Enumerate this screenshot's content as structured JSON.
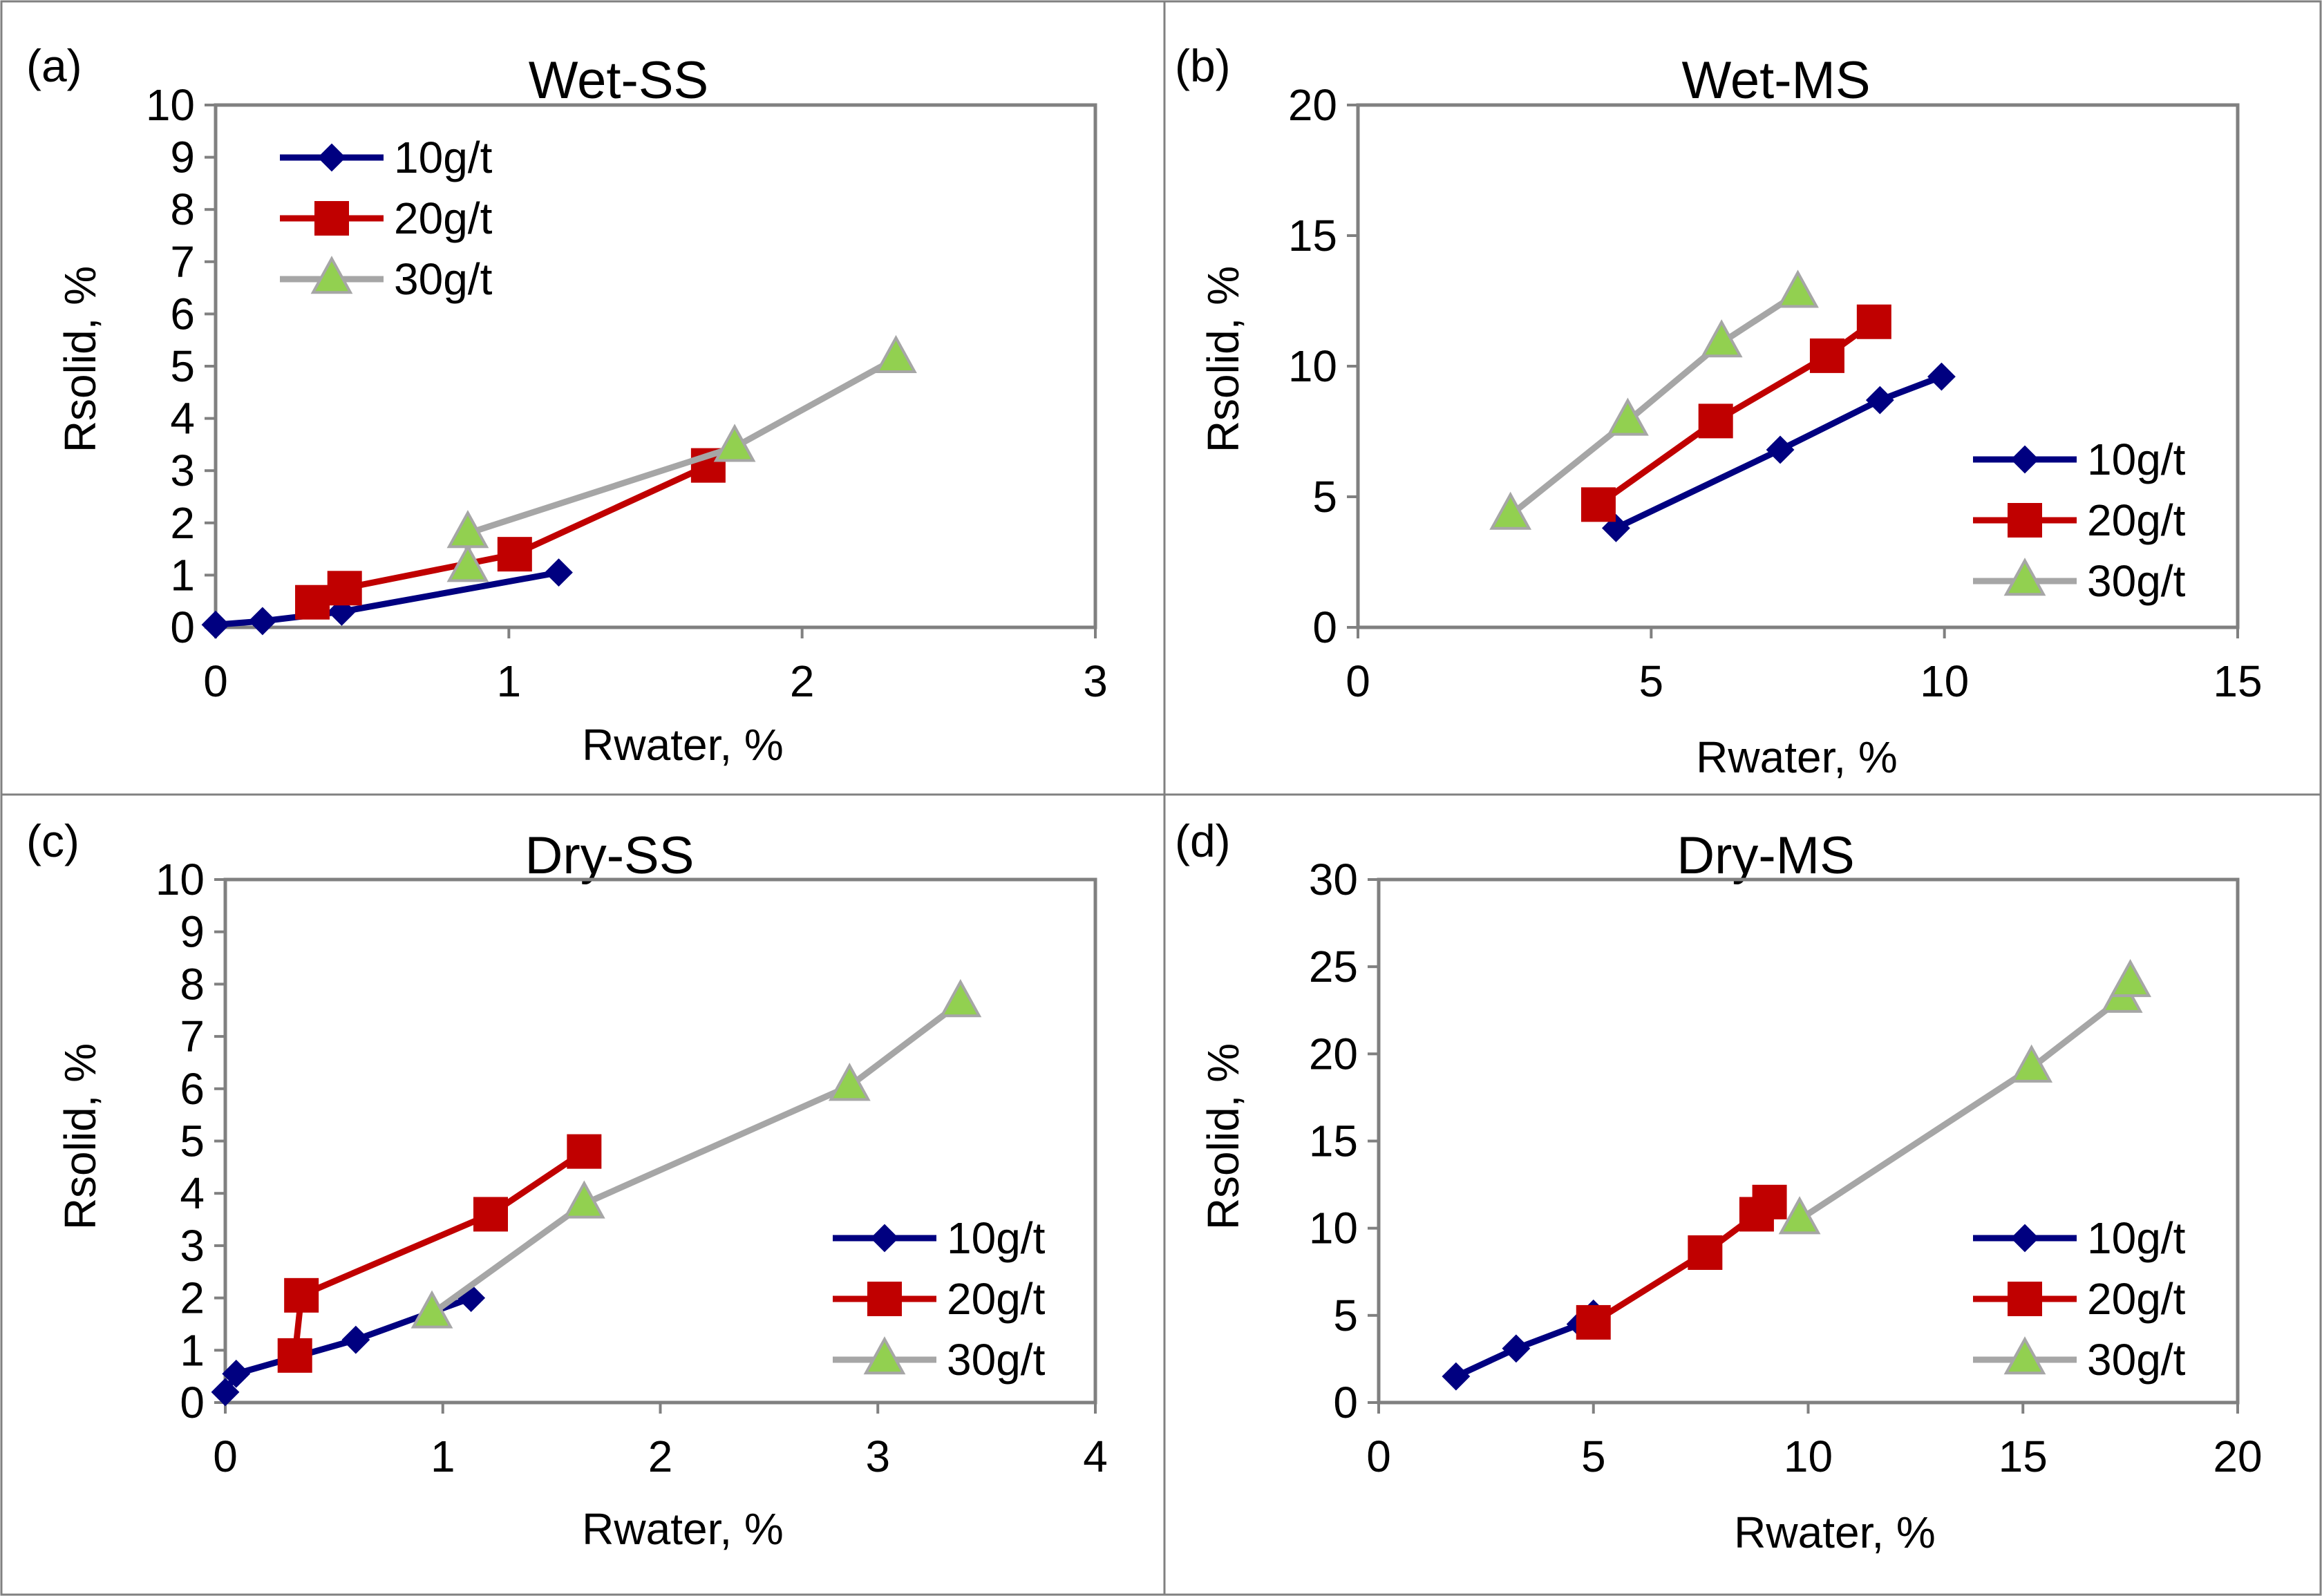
{
  "colors": {
    "series_10": "#000080",
    "series_20": "#C00000",
    "series_30_line": "#A6A6A6",
    "series_30_marker": "#92D050",
    "axis": "#808080",
    "border": "#808080"
  },
  "chart_data": [
    {
      "type": "line",
      "panel_label": "(a)",
      "title": "Wet-SS",
      "xlabel": "Rwater, %",
      "ylabel": "Rsolid, %",
      "xlim": [
        0,
        3
      ],
      "ylim": [
        0,
        10
      ],
      "xticks": [
        "0",
        "1",
        "2",
        "3"
      ],
      "yticks": [
        "0",
        "1",
        "2",
        "3",
        "4",
        "5",
        "6",
        "7",
        "8",
        "9",
        "10"
      ],
      "legend_position": "top-left",
      "series": [
        {
          "name": "10g/t",
          "marker": "diamond",
          "x": [
            0.0,
            0.16,
            0.43,
            1.17
          ],
          "y": [
            0.05,
            0.12,
            0.3,
            1.05
          ]
        },
        {
          "name": "20g/t",
          "marker": "square",
          "x": [
            0.33,
            0.44,
            1.02,
            1.68
          ],
          "y": [
            0.48,
            0.75,
            1.4,
            3.1
          ]
        },
        {
          "name": "30g/t",
          "marker": "triangle",
          "x": [
            0.86,
            0.86,
            1.77,
            2.32
          ],
          "y": [
            1.15,
            1.8,
            3.45,
            5.15
          ]
        }
      ]
    },
    {
      "type": "line",
      "panel_label": "(b)",
      "title": "Wet-MS",
      "xlabel": "Rwater, %",
      "ylabel": "Rsolid, %",
      "xlim": [
        0,
        15
      ],
      "ylim": [
        0,
        20
      ],
      "xticks": [
        "0",
        "5",
        "10",
        "15"
      ],
      "yticks": [
        "0",
        "5",
        "10",
        "15",
        "20"
      ],
      "legend_position": "bottom-right",
      "series": [
        {
          "name": "10g/t",
          "marker": "diamond",
          "x": [
            4.4,
            7.2,
            8.9,
            9.95
          ],
          "y": [
            3.8,
            6.8,
            8.7,
            9.6
          ]
        },
        {
          "name": "20g/t",
          "marker": "square",
          "x": [
            4.1,
            6.1,
            8.0,
            8.8
          ],
          "y": [
            4.7,
            7.9,
            10.4,
            11.7
          ]
        },
        {
          "name": "30g/t",
          "marker": "triangle",
          "x": [
            2.6,
            4.6,
            6.2,
            7.5
          ],
          "y": [
            4.3,
            7.9,
            10.9,
            12.8
          ]
        }
      ]
    },
    {
      "type": "line",
      "panel_label": "(c)",
      "title": "Dry-SS",
      "xlabel": "Rwater, %",
      "ylabel": "Rsolid, %",
      "xlim": [
        0,
        4
      ],
      "ylim": [
        0,
        10
      ],
      "xticks": [
        "0",
        "1",
        "2",
        "3",
        "4"
      ],
      "yticks": [
        "0",
        "1",
        "2",
        "3",
        "4",
        "5",
        "6",
        "7",
        "8",
        "9",
        "10"
      ],
      "legend_position": "bottom-right",
      "series": [
        {
          "name": "10g/t",
          "marker": "diamond",
          "x": [
            0.0,
            0.05,
            0.6,
            1.13
          ],
          "y": [
            0.2,
            0.55,
            1.2,
            2.0
          ]
        },
        {
          "name": "20g/t",
          "marker": "square",
          "x": [
            0.32,
            0.35,
            1.22,
            1.65
          ],
          "y": [
            0.9,
            2.05,
            3.6,
            4.8
          ]
        },
        {
          "name": "30g/t",
          "marker": "triangle",
          "x": [
            0.95,
            1.65,
            2.87,
            3.38
          ],
          "y": [
            1.7,
            3.8,
            6.05,
            7.65
          ]
        }
      ]
    },
    {
      "type": "line",
      "panel_label": "(d)",
      "title": "Dry-MS",
      "xlabel": "Rwater, %",
      "ylabel": "Rsolid, %",
      "xlim": [
        0,
        20
      ],
      "ylim": [
        0,
        30
      ],
      "xticks": [
        "0",
        "5",
        "10",
        "15",
        "20"
      ],
      "yticks": [
        "0",
        "5",
        "10",
        "15",
        "20",
        "25",
        "30"
      ],
      "legend_position": "bottom-right",
      "series": [
        {
          "name": "10g/t",
          "marker": "diamond",
          "x": [
            1.8,
            3.2,
            4.7,
            5.0
          ],
          "y": [
            1.5,
            3.1,
            4.5,
            5.1
          ]
        },
        {
          "name": "20g/t",
          "marker": "square",
          "x": [
            5.0,
            7.6,
            8.8,
            9.1
          ],
          "y": [
            4.6,
            8.6,
            10.8,
            11.5
          ]
        },
        {
          "name": "30g/t",
          "marker": "triangle",
          "x": [
            9.8,
            15.2,
            17.3,
            17.5
          ],
          "y": [
            10.5,
            19.2,
            23.2,
            24.1
          ]
        }
      ]
    }
  ]
}
